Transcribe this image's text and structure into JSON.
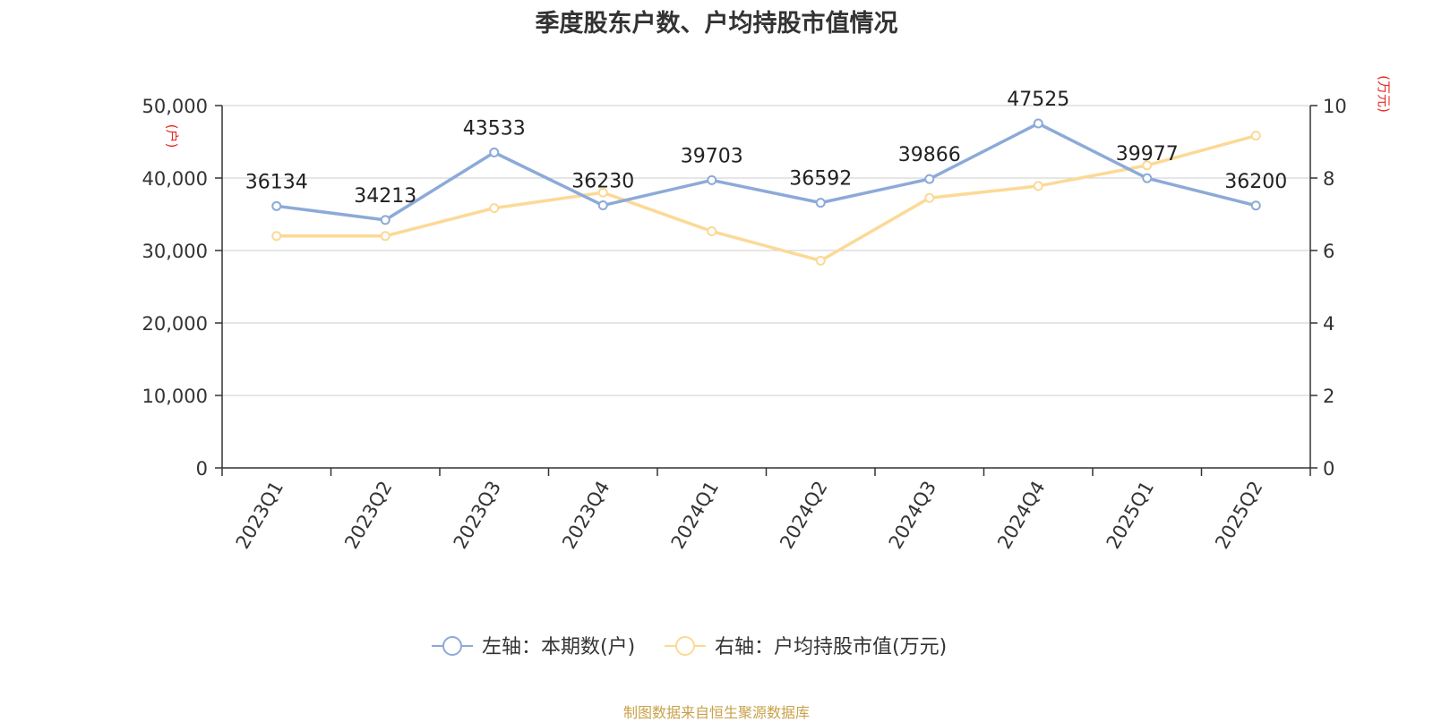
{
  "chart_data": {
    "type": "line",
    "title": "季度股东户数、户均持股市值情况",
    "categories": [
      "2023Q1",
      "2023Q2",
      "2023Q3",
      "2023Q4",
      "2024Q1",
      "2024Q2",
      "2024Q3",
      "2024Q4",
      "2025Q1",
      "2025Q2"
    ],
    "left_axis": {
      "unit": "(户)",
      "range": [
        0,
        50000
      ],
      "ticks": [
        0,
        10000,
        20000,
        30000,
        40000,
        50000
      ],
      "tick_labels": [
        "0",
        "10,000",
        "20,000",
        "30,000",
        "40,000",
        "50,000"
      ]
    },
    "right_axis": {
      "unit": "(万元)",
      "range": [
        0,
        10
      ],
      "ticks": [
        0,
        2,
        4,
        6,
        8,
        10
      ],
      "tick_labels": [
        "0",
        "2",
        "4",
        "6",
        "8",
        "10"
      ]
    },
    "series": [
      {
        "name": "左轴：本期数(户)",
        "axis": "left",
        "color": "#8caad8",
        "values": [
          36134,
          34213,
          43533,
          36230,
          39703,
          36592,
          39866,
          47525,
          39977,
          36200
        ],
        "data_labels": [
          "36134",
          "34213",
          "43533",
          "36230",
          "39703",
          "36592",
          "39866",
          "47525",
          "39977",
          "36200"
        ]
      },
      {
        "name": "右轴：户均持股市值(万元)",
        "axis": "right",
        "color": "#fcd996",
        "values": [
          6.4,
          6.4,
          7.17,
          7.6,
          6.53,
          5.72,
          7.45,
          7.78,
          8.35,
          9.17
        ]
      }
    ],
    "grid": true,
    "legend": "bottom-center",
    "source": "制图数据来自恒生聚源数据库"
  }
}
